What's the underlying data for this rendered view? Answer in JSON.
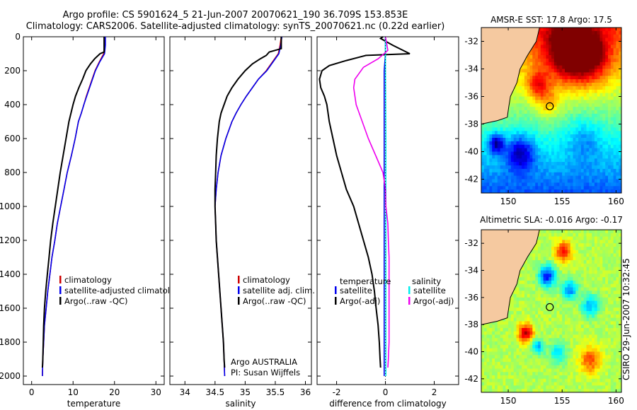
{
  "header": {
    "title_line1": "Argo profile: CS 5901624_5 21-Jun-2007 20070621_190 36.709S 153.853E",
    "title_line2": "Climatology: CARS2006. Satellite-adjusted climatology: synTS_20070621.nc (0.22d earlier)"
  },
  "maps": {
    "sst_title": "AMSR-E SST: 17.8 Argo: 17.5",
    "sla_title": "Altimetric SLA: -0.016 Argo: -0.17"
  },
  "footer": {
    "timestamp": "CSIRO 29-Jun-2007 10:32:45"
  },
  "colors": {
    "climatology": "#cc0000",
    "satellite": "#0000ee",
    "argo": "#000000",
    "argo_adj": "#ee00ee",
    "satellite_sal": "#00eeee",
    "land": "#f5c9a0"
  },
  "chart_data": [
    {
      "type": "line",
      "xlabel": "temperature",
      "ylabel": "",
      "xlim": [
        -2,
        32
      ],
      "ylim": [
        0,
        2050
      ],
      "xticks": [
        0,
        10,
        20,
        30
      ],
      "yticks": [
        0,
        200,
        400,
        600,
        800,
        1000,
        1200,
        1400,
        1600,
        1800,
        2000
      ],
      "series": [
        {
          "name": "climatology",
          "color": "#cc0000",
          "points": [
            [
              17.6,
              0
            ],
            [
              17.6,
              50
            ],
            [
              17.4,
              100
            ],
            [
              16.3,
              150
            ],
            [
              15.3,
              200
            ],
            [
              14.6,
              250
            ],
            [
              13.9,
              300
            ],
            [
              13.2,
              350
            ],
            [
              12.6,
              400
            ],
            [
              12,
              450
            ],
            [
              11.3,
              500
            ],
            [
              10.5,
              600
            ],
            [
              9.6,
              700
            ],
            [
              8.6,
              800
            ],
            [
              7.8,
              900
            ],
            [
              7,
              1000
            ],
            [
              6.2,
              1100
            ],
            [
              5.6,
              1200
            ],
            [
              4.9,
              1300
            ],
            [
              4.4,
              1400
            ],
            [
              3.9,
              1500
            ],
            [
              3.5,
              1600
            ],
            [
              3.1,
              1700
            ],
            [
              2.9,
              1800
            ],
            [
              2.7,
              1900
            ],
            [
              2.6,
              2000
            ]
          ]
        },
        {
          "name": "satellite-adjusted climatology",
          "color": "#0000ee",
          "points": [
            [
              17.8,
              0
            ],
            [
              17.8,
              50
            ],
            [
              17.6,
              100
            ],
            [
              16.4,
              150
            ],
            [
              15.4,
              200
            ],
            [
              14.7,
              250
            ],
            [
              14,
              300
            ],
            [
              13.3,
              350
            ],
            [
              12.6,
              400
            ],
            [
              12,
              450
            ],
            [
              11.3,
              500
            ],
            [
              10.5,
              600
            ],
            [
              9.6,
              700
            ],
            [
              8.6,
              800
            ],
            [
              7.8,
              900
            ],
            [
              7,
              1000
            ],
            [
              6.2,
              1100
            ],
            [
              5.6,
              1200
            ],
            [
              4.9,
              1300
            ],
            [
              4.4,
              1400
            ],
            [
              3.9,
              1500
            ],
            [
              3.5,
              1600
            ],
            [
              3.1,
              1700
            ],
            [
              2.9,
              1800
            ],
            [
              2.7,
              1900
            ],
            [
              2.6,
              2000
            ]
          ]
        },
        {
          "name": "Argo(..raw -QC)",
          "color": "#000000",
          "points": [
            [
              17.5,
              0
            ],
            [
              17.5,
              90
            ],
            [
              16.5,
              100
            ],
            [
              15.2,
              130
            ],
            [
              14.2,
              160
            ],
            [
              13.1,
              200
            ],
            [
              12.3,
              250
            ],
            [
              11.4,
              300
            ],
            [
              10.6,
              350
            ],
            [
              10,
              400
            ],
            [
              9.5,
              450
            ],
            [
              9,
              500
            ],
            [
              8.3,
              600
            ],
            [
              7.6,
              700
            ],
            [
              6.9,
              800
            ],
            [
              6.3,
              900
            ],
            [
              5.7,
              1000
            ],
            [
              5.1,
              1100
            ],
            [
              4.6,
              1200
            ],
            [
              4.2,
              1300
            ],
            [
              3.8,
              1400
            ],
            [
              3.4,
              1500
            ],
            [
              3.1,
              1600
            ],
            [
              2.9,
              1700
            ],
            [
              2.8,
              1800
            ],
            [
              2.7,
              1900
            ],
            [
              2.6,
              1950
            ]
          ]
        }
      ],
      "legend": {
        "placement": "lower-right",
        "entries": [
          "climatology",
          "satellite-adjusted climatology",
          "Argo(..raw -QC)"
        ]
      }
    },
    {
      "type": "line",
      "xlabel": "salinity",
      "ylabel": "",
      "xlim": [
        33.75,
        36.1
      ],
      "ylim": [
        0,
        2050
      ],
      "xticks": [
        34,
        34.5,
        35,
        35.5,
        36
      ],
      "series": [
        {
          "name": "climatology",
          "color": "#cc0000",
          "points": [
            [
              35.6,
              0
            ],
            [
              35.58,
              50
            ],
            [
              35.55,
              100
            ],
            [
              35.45,
              150
            ],
            [
              35.35,
              200
            ],
            [
              35.22,
              250
            ],
            [
              35.12,
              300
            ],
            [
              35.02,
              350
            ],
            [
              34.93,
              400
            ],
            [
              34.85,
              450
            ],
            [
              34.78,
              500
            ],
            [
              34.68,
              600
            ],
            [
              34.6,
              700
            ],
            [
              34.55,
              800
            ],
            [
              34.52,
              900
            ],
            [
              34.5,
              1000
            ],
            [
              34.51,
              1100
            ],
            [
              34.52,
              1200
            ],
            [
              34.54,
              1300
            ],
            [
              34.56,
              1400
            ],
            [
              34.58,
              1500
            ],
            [
              34.6,
              1600
            ],
            [
              34.62,
              1700
            ],
            [
              34.64,
              1800
            ],
            [
              34.65,
              1900
            ],
            [
              34.66,
              2000
            ]
          ]
        },
        {
          "name": "satellite adj. clim.",
          "color": "#0000ee",
          "points": [
            [
              35.61,
              0
            ],
            [
              35.59,
              50
            ],
            [
              35.56,
              100
            ],
            [
              35.46,
              150
            ],
            [
              35.36,
              200
            ],
            [
              35.22,
              250
            ],
            [
              35.12,
              300
            ],
            [
              35.02,
              350
            ],
            [
              34.93,
              400
            ],
            [
              34.85,
              450
            ],
            [
              34.78,
              500
            ],
            [
              34.68,
              600
            ],
            [
              34.6,
              700
            ],
            [
              34.55,
              800
            ],
            [
              34.52,
              900
            ],
            [
              34.5,
              1000
            ],
            [
              34.51,
              1100
            ],
            [
              34.52,
              1200
            ],
            [
              34.54,
              1300
            ],
            [
              34.56,
              1400
            ],
            [
              34.58,
              1500
            ],
            [
              34.6,
              1600
            ],
            [
              34.62,
              1700
            ],
            [
              34.64,
              1800
            ],
            [
              34.65,
              1900
            ],
            [
              34.66,
              2000
            ]
          ]
        },
        {
          "name": "Argo(..raw -QC)",
          "color": "#000000",
          "points": [
            [
              35.6,
              0
            ],
            [
              35.6,
              70
            ],
            [
              35.4,
              90
            ],
            [
              35.35,
              110
            ],
            [
              35.25,
              130
            ],
            [
              35.12,
              160
            ],
            [
              35,
              200
            ],
            [
              34.88,
              250
            ],
            [
              34.78,
              300
            ],
            [
              34.7,
              350
            ],
            [
              34.65,
              400
            ],
            [
              34.6,
              450
            ],
            [
              34.57,
              500
            ],
            [
              34.54,
              600
            ],
            [
              34.52,
              700
            ],
            [
              34.51,
              800
            ],
            [
              34.5,
              900
            ],
            [
              34.5,
              1000
            ],
            [
              34.51,
              1100
            ],
            [
              34.52,
              1200
            ],
            [
              34.54,
              1300
            ],
            [
              34.56,
              1400
            ],
            [
              34.58,
              1500
            ],
            [
              34.6,
              1600
            ],
            [
              34.62,
              1700
            ],
            [
              34.64,
              1800
            ],
            [
              34.65,
              1900
            ],
            [
              34.66,
              1950
            ]
          ]
        }
      ],
      "legend": {
        "placement": "lower-right",
        "entries": [
          "climatology",
          "satellite adj. clim.",
          "Argo(..raw -QC)"
        ]
      },
      "annotations": [
        "Argo AUSTRALIA",
        "PI: Susan Wijffels"
      ]
    },
    {
      "type": "line",
      "xlabel": "difference from climatology",
      "ylabel": "",
      "xlim": [
        -2.8,
        3
      ],
      "ylim": [
        0,
        2050
      ],
      "xticks": [
        -2,
        0,
        2
      ],
      "series": [
        {
          "name": "temperature satellite",
          "color": "#0000ee",
          "points": [
            [
              0,
              0
            ],
            [
              0,
              100
            ],
            [
              -0.05,
              200
            ],
            [
              -0.05,
              400
            ],
            [
              -0.05,
              800
            ],
            [
              -0.05,
              1200
            ],
            [
              -0.05,
              1600
            ],
            [
              -0.05,
              2000
            ]
          ]
        },
        {
          "name": "temperature Argo(-adj)",
          "color": "#000000",
          "points": [
            [
              -0.1,
              0
            ],
            [
              -0.2,
              10
            ],
            [
              0.3,
              50
            ],
            [
              1,
              100
            ],
            [
              -0.8,
              110
            ],
            [
              -1.6,
              140
            ],
            [
              -2.3,
              170
            ],
            [
              -2.6,
              200
            ],
            [
              -2.7,
              250
            ],
            [
              -2.65,
              300
            ],
            [
              -2.5,
              350
            ],
            [
              -2.4,
              400
            ],
            [
              -2.3,
              500
            ],
            [
              -2.15,
              600
            ],
            [
              -2,
              700
            ],
            [
              -1.8,
              800
            ],
            [
              -1.6,
              900
            ],
            [
              -1.3,
              1000
            ],
            [
              -1.1,
              1100
            ],
            [
              -0.9,
              1200
            ],
            [
              -0.7,
              1300
            ],
            [
              -0.55,
              1400
            ],
            [
              -0.45,
              1500
            ],
            [
              -0.38,
              1600
            ],
            [
              -0.3,
              1700
            ],
            [
              -0.25,
              1800
            ],
            [
              -0.22,
              1900
            ],
            [
              -0.2,
              1950
            ]
          ]
        },
        {
          "name": "salinity satellite",
          "color": "#00eeee",
          "points": [
            [
              0,
              0
            ],
            [
              0,
              200
            ],
            [
              0.02,
              600
            ],
            [
              0.02,
              1000
            ],
            [
              0.02,
              1400
            ],
            [
              0.02,
              1800
            ],
            [
              0.02,
              2000
            ]
          ]
        },
        {
          "name": "salinity Argo(-adj)",
          "color": "#ee00ee",
          "points": [
            [
              0,
              0
            ],
            [
              0.1,
              80
            ],
            [
              -0.3,
              130
            ],
            [
              -0.9,
              180
            ],
            [
              -1.25,
              250
            ],
            [
              -1.3,
              300
            ],
            [
              -1.2,
              400
            ],
            [
              -0.95,
              500
            ],
            [
              -0.7,
              600
            ],
            [
              -0.4,
              700
            ],
            [
              -0.1,
              800
            ],
            [
              0,
              900
            ],
            [
              0.02,
              1000
            ],
            [
              0.1,
              1100
            ],
            [
              0.12,
              1200
            ],
            [
              0.15,
              1300
            ],
            [
              0.15,
              1400
            ],
            [
              0.15,
              1500
            ],
            [
              0.15,
              1600
            ],
            [
              0.15,
              1700
            ],
            [
              0.15,
              1800
            ],
            [
              0.12,
              1900
            ],
            [
              0.1,
              1950
            ]
          ]
        }
      ],
      "legend": {
        "placement": "lower-center",
        "temperature_header": "temperature",
        "salinity_header": "salinity",
        "entries": [
          "satellite",
          "Argo(-adj)",
          "satellite",
          "Argo(-adj)"
        ]
      }
    },
    {
      "type": "heatmap",
      "title": "AMSR-E SST: 17.8 Argo: 17.5",
      "xticks": [
        150,
        155,
        160
      ],
      "yticks": [
        -32,
        -34,
        -36,
        -38,
        -40,
        -42
      ],
      "xlim": [
        147.5,
        160.5
      ],
      "ylim": [
        -43,
        -31
      ],
      "marker": {
        "lon": 153.853,
        "lat": -36.709
      }
    },
    {
      "type": "heatmap",
      "title": "Altimetric SLA: -0.016 Argo: -0.17",
      "xticks": [
        150,
        155,
        160
      ],
      "yticks": [
        -32,
        -34,
        -36,
        -38,
        -40,
        -42
      ],
      "xlim": [
        147.5,
        160.5
      ],
      "ylim": [
        -43,
        -31
      ],
      "marker": {
        "lon": 153.853,
        "lat": -36.709
      }
    }
  ]
}
